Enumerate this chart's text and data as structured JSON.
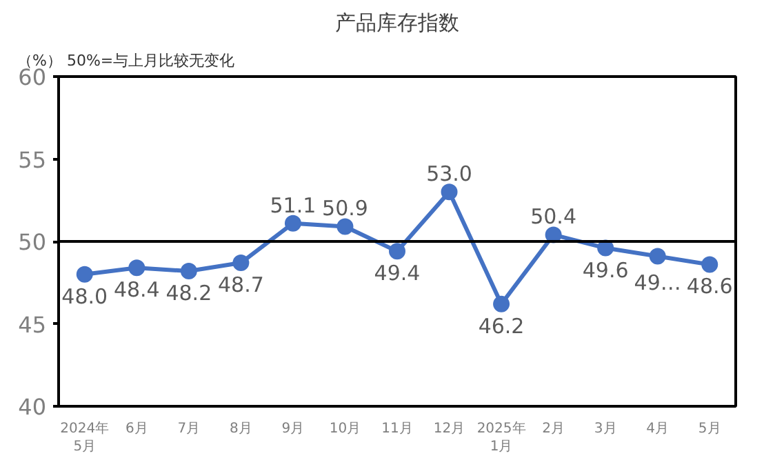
{
  "chart_data": {
    "type": "line",
    "title": "产品库存指数",
    "annotations": [
      "（%） 50%=与上月比较无变化"
    ],
    "categories": [
      "2024年\n5月",
      "6月",
      "7月",
      "8月",
      "9月",
      "10月",
      "11月",
      "12月",
      "2025年\n1月",
      "2月",
      "3月",
      "4月",
      "5月"
    ],
    "series": [
      {
        "color": "#4472c4",
        "values": [
          48.0,
          48.4,
          48.2,
          48.7,
          51.1,
          50.9,
          49.4,
          53.0,
          46.2,
          50.4,
          49.6,
          49.1,
          48.6
        ],
        "value_labels": [
          "48.0",
          "48.4",
          "48.2",
          "48.7",
          "51.1",
          "50.9",
          "49.4",
          "53.0",
          "46.2",
          "50.4",
          "49.6",
          "49…",
          "48.6"
        ]
      }
    ],
    "ylim": [
      40,
      60
    ],
    "yticks": [
      40,
      45,
      50,
      55,
      60
    ],
    "ref_lines": [
      {
        "axis": "y",
        "value": 50,
        "color": "#000000"
      }
    ],
    "marker": "circle",
    "grid": false
  }
}
